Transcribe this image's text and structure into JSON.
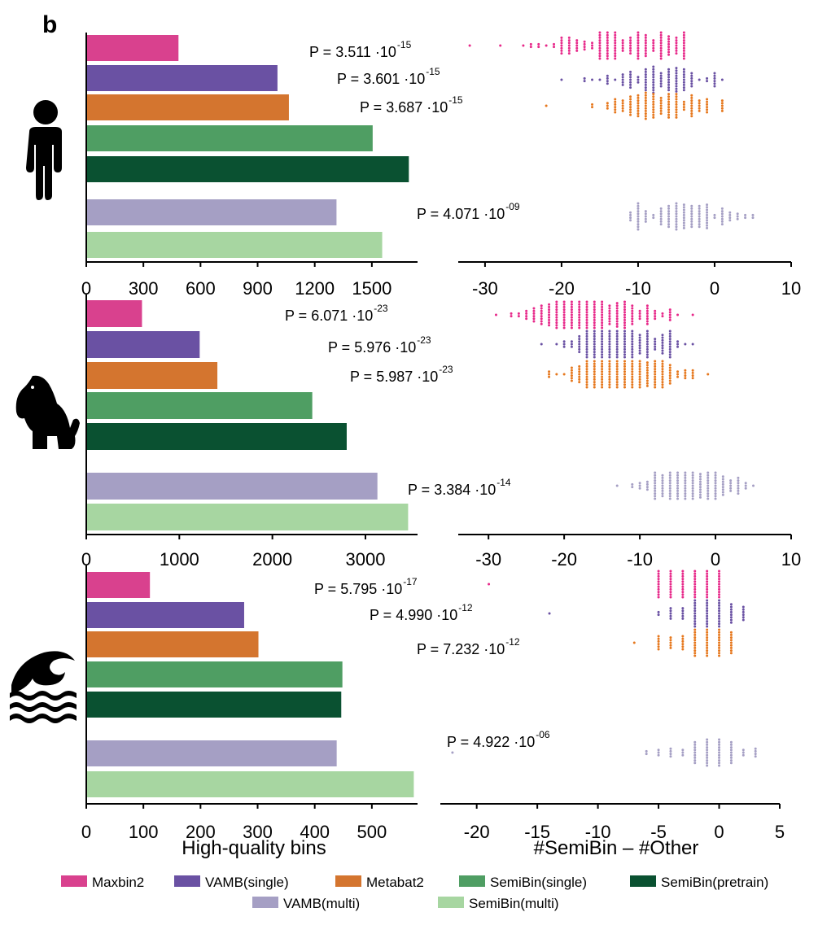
{
  "panel_label": "b",
  "colors": {
    "Maxbin2": "#d9418e",
    "VAMB(single)": "#6a51a3",
    "Metabat2": "#d4752f",
    "SemiBin(single)": "#4f9e63",
    "SemiBin(pretrain)": "#0a5131",
    "VAMB(multi)": "#a59fc4",
    "SemiBin(multi)": "#a7d6a1"
  },
  "dot_colors": {
    "Maxbin2": "#e7298a",
    "VAMB(single)": "#6a51a3",
    "Metabat2": "#e6781e",
    "VAMB(multi)": "#a59fc4"
  },
  "icons": [
    "human-icon",
    "dog-icon",
    "ocean-icon"
  ],
  "xlabels": {
    "left": "High-quality bins",
    "right": "#SemiBin – #Other"
  },
  "legend": {
    "row1": [
      "Maxbin2",
      "VAMB(single)",
      "Metabat2",
      "SemiBin(single)",
      "SemiBin(pretrain)"
    ],
    "row2": [
      "VAMB(multi)",
      "SemiBin(multi)"
    ]
  },
  "chart_data": [
    {
      "type": "bar",
      "environment": "human-icon",
      "categories": [
        "Maxbin2",
        "VAMB(single)",
        "Metabat2",
        "SemiBin(single)",
        "SemiBin(pretrain)",
        "VAMB(multi)",
        "SemiBin(multi)"
      ],
      "values": [
        480,
        1000,
        1060,
        1500,
        1690,
        1310,
        1550
      ],
      "xlim": [
        0,
        1740
      ],
      "xticks": [
        0,
        300,
        600,
        900,
        1200,
        1500
      ]
    },
    {
      "type": "scatter",
      "environment": "human-icon",
      "xlim": [
        -33.5,
        10
      ],
      "xticks": [
        -30,
        -20,
        -10,
        0,
        10
      ],
      "groups": [
        {
          "name": "Maxbin2",
          "p_base": "P =  3.511 ·10",
          "p_exp": "-15",
          "min": -32,
          "max": -4,
          "center": -12,
          "spread": 6,
          "n": 150
        },
        {
          "name": "VAMB(single)",
          "p_base": "P =  3.601 ·10",
          "p_exp": "-15",
          "min": -20,
          "max": 1,
          "center": -7,
          "spread": 4,
          "n": 95
        },
        {
          "name": "Metabat2",
          "p_base": "P =  3.687 ·10",
          "p_exp": "-15",
          "min": -22,
          "max": 1,
          "center": -7,
          "spread": 4,
          "n": 110
        },
        {
          "name": "VAMB(multi)",
          "p_base": "P =  4.071 ·10",
          "p_exp": "-09",
          "min": -11,
          "max": 5,
          "center": -4,
          "spread": 4,
          "n": 110
        }
      ]
    },
    {
      "type": "bar",
      "environment": "dog-icon",
      "categories": [
        "Maxbin2",
        "VAMB(single)",
        "Metabat2",
        "SemiBin(single)",
        "SemiBin(pretrain)",
        "VAMB(multi)",
        "SemiBin(multi)"
      ],
      "values": [
        590,
        1210,
        1400,
        2420,
        2790,
        3120,
        3450
      ],
      "xlim": [
        0,
        3560
      ],
      "xticks": [
        0,
        1000,
        2000,
        3000
      ]
    },
    {
      "type": "scatter",
      "environment": "dog-icon",
      "xlim": [
        -34,
        10
      ],
      "xticks": [
        -30,
        -20,
        -10,
        0,
        10
      ],
      "groups": [
        {
          "name": "Maxbin2",
          "p_base": "P =  6.071 ·10",
          "p_exp": "-23",
          "min": -29,
          "max": -3,
          "center": -17,
          "spread": 5,
          "n": 200
        },
        {
          "name": "VAMB(single)",
          "p_base": "P =  5.976 ·10",
          "p_exp": "-23",
          "min": -23,
          "max": -3,
          "center": -12,
          "spread": 4,
          "n": 180
        },
        {
          "name": "Metabat2",
          "p_base": "P =  5.987 ·10",
          "p_exp": "-23",
          "min": -22,
          "max": -1,
          "center": -12,
          "spread": 4,
          "n": 200
        },
        {
          "name": "VAMB(multi)",
          "p_base": "P =  3.384 ·10",
          "p_exp": "-14",
          "min": -13,
          "max": 5,
          "center": -3,
          "spread": 4,
          "n": 150
        }
      ]
    },
    {
      "type": "bar",
      "environment": "ocean-icon",
      "categories": [
        "Maxbin2",
        "VAMB(single)",
        "Metabat2",
        "SemiBin(single)",
        "SemiBin(pretrain)",
        "VAMB(multi)",
        "SemiBin(multi)"
      ],
      "values": [
        110,
        275,
        300,
        447,
        445,
        437,
        572
      ],
      "xlim": [
        0,
        580
      ],
      "xticks": [
        0,
        100,
        200,
        300,
        400,
        500
      ]
    },
    {
      "type": "scatter",
      "environment": "ocean-icon",
      "xlim": [
        -23,
        5
      ],
      "xticks": [
        -20,
        -15,
        -10,
        -5,
        0,
        5
      ],
      "groups": [
        {
          "name": "Maxbin2",
          "p_base": "P =  5.795 ·10",
          "p_exp": "-17",
          "min": -19,
          "max": 0,
          "center": -2,
          "spread": 2,
          "n": 100
        },
        {
          "name": "VAMB(single)",
          "p_base": "P =  4.990 ·10",
          "p_exp": "-12",
          "min": -14,
          "max": 2,
          "center": -1,
          "spread": 2,
          "n": 70
        },
        {
          "name": "Metabat2",
          "p_base": "P =  7.232 ·10",
          "p_exp": "-12",
          "min": -7,
          "max": 1,
          "center": -1,
          "spread": 2,
          "n": 65
        },
        {
          "name": "VAMB(multi)",
          "p_base": "P =  4.922 ·10",
          "p_exp": "-06",
          "min": -22,
          "max": 3,
          "center": -1,
          "spread": 2,
          "n": 70
        }
      ]
    }
  ]
}
